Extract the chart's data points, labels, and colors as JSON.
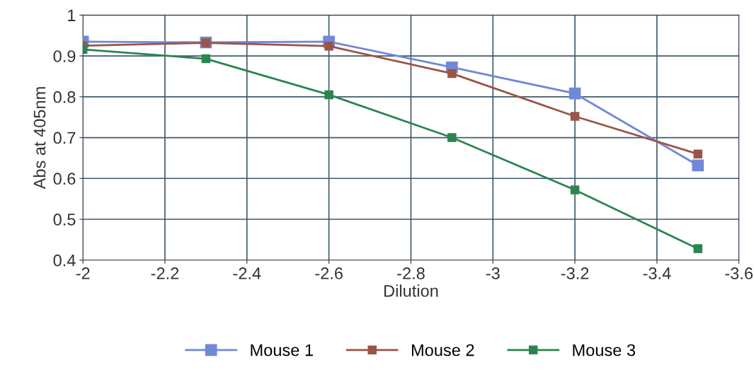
{
  "chart_data": {
    "type": "line",
    "xlabel": "Dilution",
    "ylabel": "Abs at 405nm",
    "x": [
      -2,
      -2.3,
      -2.6,
      -2.9,
      -3.2,
      -3.5
    ],
    "series": [
      {
        "name": "Mouse 1",
        "color": "#7088d8",
        "values": [
          0.935,
          0.933,
          0.935,
          0.872,
          0.808,
          0.632
        ]
      },
      {
        "name": "Mouse 2",
        "color": "#9a5548",
        "values": [
          0.925,
          0.932,
          0.924,
          0.857,
          0.752,
          0.66
        ]
      },
      {
        "name": "Mouse 3",
        "color": "#2b8550",
        "values": [
          0.916,
          0.893,
          0.805,
          0.7,
          0.572,
          0.428
        ]
      }
    ],
    "xlim": [
      -2,
      -3.6
    ],
    "xticks": [
      -2,
      -2.2,
      -2.4,
      -2.6,
      -2.8,
      -3,
      -3.2,
      -3.4,
      -3.6
    ],
    "ylim": [
      0.4,
      1
    ],
    "yticks": [
      0.4,
      0.5,
      0.6,
      0.7,
      0.8,
      0.9,
      1
    ],
    "grid": true,
    "legend": "bottom",
    "marker": "square",
    "line_style": "solid"
  }
}
